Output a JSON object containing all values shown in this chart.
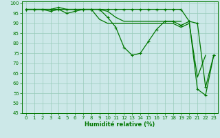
{
  "xlabel": "Humidité relative (%)",
  "xlim_min": -0.5,
  "xlim_max": 23.5,
  "ylim_min": 45,
  "ylim_max": 101,
  "yticks": [
    45,
    50,
    55,
    60,
    65,
    70,
    75,
    80,
    85,
    90,
    95,
    100
  ],
  "xticks": [
    0,
    1,
    2,
    3,
    4,
    5,
    6,
    7,
    8,
    9,
    10,
    11,
    12,
    13,
    14,
    15,
    16,
    17,
    18,
    19,
    20,
    21,
    22,
    23
  ],
  "background_color": "#cce8e8",
  "grid_color": "#99ccbb",
  "line_color": "#007700",
  "curves": [
    {
      "y": [
        97,
        97,
        97,
        97,
        98,
        97,
        97,
        97,
        97,
        97,
        97,
        97,
        97,
        97,
        97,
        97,
        97,
        97,
        97,
        97,
        91,
        90,
        58,
        74
      ],
      "marker": true
    },
    {
      "y": [
        97,
        97,
        97,
        96,
        97,
        95,
        96,
        97,
        97,
        97,
        93,
        88,
        78,
        74,
        75,
        81,
        87,
        91,
        91,
        89,
        91,
        57,
        54,
        74
      ],
      "marker": true
    },
    {
      "y": [
        97,
        97,
        97,
        97,
        97,
        97,
        97,
        97,
        97,
        92,
        90,
        90,
        90,
        90,
        90,
        90,
        90,
        90,
        90,
        88,
        90,
        63,
        74,
        null
      ],
      "marker": false
    },
    {
      "y": [
        97,
        97,
        97,
        97,
        97,
        97,
        97,
        97,
        97,
        97,
        96,
        93,
        91,
        91,
        91,
        91,
        91,
        91,
        91,
        91,
        null,
        null,
        null,
        null
      ],
      "marker": false
    }
  ],
  "tick_fontsize": 5,
  "xlabel_fontsize": 6,
  "linewidth": 0.9,
  "markersize": 3.0
}
